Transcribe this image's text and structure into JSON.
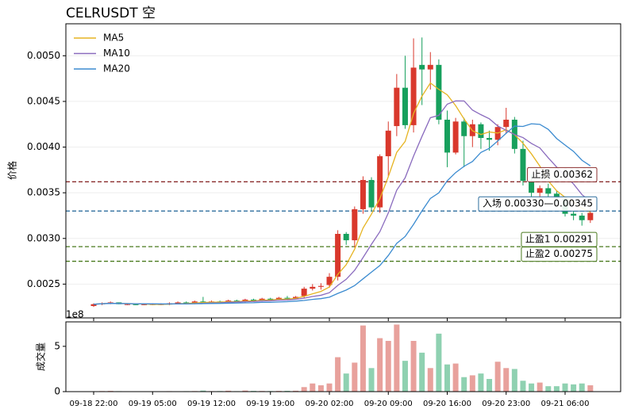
{
  "chart_data": [
    {
      "type": "candlestick",
      "title": "CELRUSDT  空",
      "ylabel": "价格",
      "up_color": "#d9382c",
      "down_color": "#17a05d",
      "grid": true,
      "legend": "upper left",
      "xlim": [
        -3.3,
        62.6
      ],
      "ylim": [
        0.00213,
        0.00535
      ],
      "yticks": [
        0.0025,
        {
          "value": 0.003,
          "label": "0.0030"
        },
        0.0035,
        {
          "value": 0.004,
          "label": "0.0040"
        },
        0.0045,
        {
          "value": 0.005,
          "label": "0.0050"
        }
      ],
      "x": [
        0,
        1,
        2,
        3,
        4,
        5,
        6,
        7,
        8,
        9,
        10,
        11,
        12,
        13,
        14,
        15,
        16,
        17,
        18,
        19,
        20,
        21,
        22,
        23,
        24,
        25,
        26,
        27,
        28,
        29,
        30,
        31,
        32,
        33,
        34,
        35,
        36,
        37,
        38,
        39,
        40,
        41,
        42,
        43,
        44,
        45,
        46,
        47,
        48,
        49,
        50,
        51,
        52,
        53,
        54,
        55,
        56,
        57,
        58,
        59
      ],
      "open": [
        0.00226,
        0.00228,
        0.00229,
        0.0023,
        0.00228,
        0.00228,
        0.00227,
        0.00228,
        0.00228,
        0.00228,
        0.00229,
        0.0023,
        0.00229,
        0.00231,
        0.0023,
        0.00231,
        0.0023,
        0.00232,
        0.00231,
        0.00233,
        0.00232,
        0.00234,
        0.00233,
        0.00235,
        0.00234,
        0.00237,
        0.00245,
        0.00247,
        0.00249,
        0.00258,
        0.00305,
        0.00298,
        0.00332,
        0.00364,
        0.00334,
        0.0039,
        0.00423,
        0.00465,
        0.00424,
        0.0049,
        0.00485,
        0.0049,
        0.0043,
        0.00394,
        0.00428,
        0.00412,
        0.00425,
        0.0041,
        0.00408,
        0.00422,
        0.0043,
        0.00398,
        0.00363,
        0.0035,
        0.00355,
        0.00349,
        0.00344,
        0.00327,
        0.00325,
        0.0032
      ],
      "high": [
        0.00229,
        0.0023,
        0.00231,
        0.0023,
        0.00229,
        0.00229,
        0.00229,
        0.00229,
        0.00229,
        0.0023,
        0.00231,
        0.00231,
        0.00232,
        0.00236,
        0.00232,
        0.00232,
        0.00233,
        0.00233,
        0.00234,
        0.00234,
        0.00235,
        0.00235,
        0.00236,
        0.00237,
        0.00237,
        0.00247,
        0.0025,
        0.00251,
        0.00262,
        0.00309,
        0.00307,
        0.00335,
        0.00368,
        0.00367,
        0.00392,
        0.00428,
        0.0048,
        0.005,
        0.00519,
        0.0052,
        0.00504,
        0.00496,
        0.0044,
        0.00432,
        0.00432,
        0.0043,
        0.00427,
        0.00418,
        0.00425,
        0.00443,
        0.00433,
        0.00407,
        0.0037,
        0.00358,
        0.0036,
        0.00352,
        0.00346,
        0.0033,
        0.00328,
        0.00334
      ],
      "low": [
        0.00225,
        0.00227,
        0.00228,
        0.00228,
        0.00227,
        0.00227,
        0.00227,
        0.00227,
        0.00227,
        0.00227,
        0.00228,
        0.00229,
        0.00228,
        0.00229,
        0.00229,
        0.00229,
        0.00229,
        0.0023,
        0.0023,
        0.00231,
        0.00231,
        0.00232,
        0.00232,
        0.00233,
        0.00233,
        0.00235,
        0.00243,
        0.00244,
        0.00246,
        0.00254,
        0.00293,
        0.0029,
        0.00327,
        0.0033,
        0.00328,
        0.00368,
        0.00412,
        0.0042,
        0.00416,
        0.00446,
        0.00463,
        0.00425,
        0.00378,
        0.00392,
        0.00378,
        0.004,
        0.00398,
        0.00396,
        0.00402,
        0.00415,
        0.00393,
        0.00358,
        0.00345,
        0.00344,
        0.00345,
        0.0034,
        0.00324,
        0.0032,
        0.00314,
        0.00317
      ],
      "close": [
        0.00228,
        0.00229,
        0.0023,
        0.00228,
        0.00228,
        0.00227,
        0.00228,
        0.00228,
        0.00228,
        0.00229,
        0.0023,
        0.00229,
        0.00231,
        0.0023,
        0.00231,
        0.0023,
        0.00232,
        0.00231,
        0.00233,
        0.00232,
        0.00234,
        0.00233,
        0.00235,
        0.00234,
        0.00236,
        0.00245,
        0.00247,
        0.00248,
        0.00258,
        0.00305,
        0.00298,
        0.00332,
        0.00364,
        0.00334,
        0.0039,
        0.00418,
        0.00465,
        0.00424,
        0.00487,
        0.00485,
        0.0049,
        0.0043,
        0.00394,
        0.00428,
        0.00412,
        0.00425,
        0.0041,
        0.00408,
        0.00422,
        0.0043,
        0.00398,
        0.00363,
        0.0035,
        0.00355,
        0.00349,
        0.00344,
        0.00327,
        0.00325,
        0.0032,
        0.00328
      ],
      "series": [
        {
          "name": "MA5",
          "color": "#e6b422",
          "values": [
            0.00228,
            0.002285,
            0.00229,
            0.0022875,
            0.002286,
            0.002284,
            0.002282,
            0.002278,
            0.002278,
            0.00228,
            0.002286,
            0.002288,
            0.002294,
            0.002298,
            0.002302,
            0.002302,
            0.002308,
            0.002308,
            0.002314,
            0.002316,
            0.002324,
            0.002326,
            0.002334,
            0.002336,
            0.002344,
            0.002366,
            0.002394,
            0.00242,
            0.002468,
            0.002606,
            0.002712,
            0.002882,
            0.003114,
            0.003266,
            0.003436,
            0.003676,
            0.003942,
            0.004062,
            0.004368,
            0.004558,
            0.004702,
            0.004632,
            0.004572,
            0.004454,
            0.004308,
            0.004178,
            0.004138,
            0.004166,
            0.004154,
            0.00419,
            0.004136,
            0.004042,
            0.003926,
            0.003792,
            0.00363,
            0.003522,
            0.00345,
            0.0034,
            0.00333,
            0.003288
          ]
        },
        {
          "name": "MA10",
          "color": "#8a6bbe",
          "values": [
            0.00228,
            0.002285,
            0.00229,
            0.002288,
            0.002286,
            0.002285,
            0.002284,
            0.002283,
            0.002282,
            0.002282,
            0.002284,
            0.002283,
            0.002286,
            0.002289,
            0.002294,
            0.002295,
            0.002301,
            0.002303,
            0.002308,
            0.002309,
            0.002316,
            0.002317,
            0.002324,
            0.002326,
            0.002334,
            0.002346,
            0.002364,
            0.002378,
            0.002406,
            0.002486,
            0.002553,
            0.002651,
            0.002791,
            0.002936,
            0.003074,
            0.003279,
            0.003528,
            0.003664,
            0.003902,
            0.004117,
            0.004322,
            0.004347,
            0.00447,
            0.004506,
            0.004505,
            0.004405,
            0.004355,
            0.00431,
            0.004231,
            0.004184,
            0.004137,
            0.004104,
            0.00404,
            0.003991,
            0.003883,
            0.003782,
            0.003688,
            0.003596,
            0.00348,
            0.003405
          ]
        },
        {
          "name": "MA20",
          "color": "#3b8bd0",
          "values": [
            0.00228,
            0.002285,
            0.002288,
            0.002287,
            0.002286,
            0.002285,
            0.002284,
            0.002284,
            0.002283,
            0.002283,
            0.002284,
            0.002284,
            0.002285,
            0.002286,
            0.002288,
            0.002289,
            0.002291,
            0.002293,
            0.002295,
            0.002296,
            0.0023,
            0.0023,
            0.002305,
            0.002308,
            0.002314,
            0.002321,
            0.002333,
            0.002341,
            0.002357,
            0.002398,
            0.002435,
            0.002484,
            0.002558,
            0.002631,
            0.002704,
            0.002813,
            0.002946,
            0.003021,
            0.003154,
            0.003302,
            0.003438,
            0.003499,
            0.003631,
            0.003721,
            0.00379,
            0.003842,
            0.003942,
            0.003987,
            0.004067,
            0.004151,
            0.00423,
            0.004226,
            0.004255,
            0.004249,
            0.004194,
            0.004094,
            0.004022,
            0.003953,
            0.003856,
            0.003795
          ]
        }
      ],
      "levels": [
        {
          "label": "止损 0.00362",
          "value": 0.00362,
          "color": "#8b2e2e"
        },
        {
          "label": "入场 0.00330—0.00345",
          "value": 0.0033,
          "color": "#2e6e9e"
        },
        {
          "label": "止盈1 0.00291",
          "value": 0.00291,
          "color": "#4a7a1e"
        },
        {
          "label": "止盈2 0.00275",
          "value": 0.00275,
          "color": "#4a7a1e"
        }
      ]
    },
    {
      "type": "bar",
      "ylabel": "成交量",
      "offset_label": "1e8",
      "up_color": "#e8a19c",
      "down_color": "#8fd1b1",
      "xlim": [
        -3.3,
        62.6
      ],
      "ylim": [
        0,
        7.7
      ],
      "yticks": [
        0,
        5
      ],
      "xticks": [
        {
          "value": 0,
          "label": "09-18 22:00"
        },
        {
          "value": 7,
          "label": "09-19 05:00"
        },
        {
          "value": 14,
          "label": "09-19 12:00"
        },
        {
          "value": 21,
          "label": "09-19 19:00"
        },
        {
          "value": 28,
          "label": "09-20 02:00"
        },
        {
          "value": 35,
          "label": "09-20 09:00"
        },
        {
          "value": 42,
          "label": "09-20 16:00"
        },
        {
          "value": 49,
          "label": "09-20 23:00"
        },
        {
          "value": 56,
          "label": "09-21 06:00"
        }
      ],
      "x": [
        0,
        1,
        2,
        3,
        4,
        5,
        6,
        7,
        8,
        9,
        10,
        11,
        12,
        13,
        14,
        15,
        16,
        17,
        18,
        19,
        20,
        21,
        22,
        23,
        24,
        25,
        26,
        27,
        28,
        29,
        30,
        31,
        32,
        33,
        34,
        35,
        36,
        37,
        38,
        39,
        40,
        41,
        42,
        43,
        44,
        45,
        46,
        47,
        48,
        49,
        50,
        51,
        52,
        53,
        54,
        55,
        56,
        57,
        58,
        59
      ],
      "values": [
        0.04,
        0.06,
        0.08,
        0.05,
        0.04,
        0.03,
        0.04,
        0.03,
        0.04,
        0.05,
        0.04,
        0.05,
        0.06,
        0.12,
        0.05,
        0.06,
        0.1,
        0.05,
        0.12,
        0.08,
        0.07,
        0.06,
        0.08,
        0.09,
        0.1,
        0.5,
        0.9,
        0.7,
        0.9,
        3.8,
        2.0,
        3.2,
        7.3,
        2.6,
        5.9,
        5.6,
        7.4,
        3.4,
        5.6,
        4.3,
        2.6,
        6.4,
        3.0,
        3.1,
        1.6,
        1.8,
        2.0,
        1.4,
        3.3,
        2.6,
        2.5,
        1.2,
        0.9,
        1.0,
        0.6,
        0.6,
        0.9,
        0.8,
        0.9,
        0.7
      ]
    }
  ]
}
